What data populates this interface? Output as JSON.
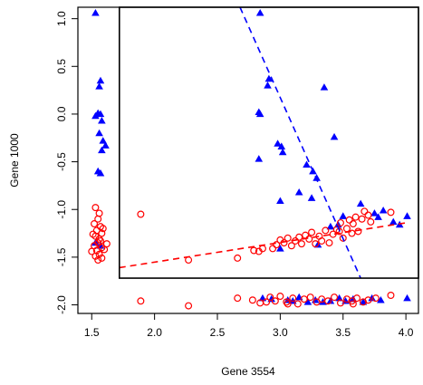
{
  "chart_data": {
    "type": "scatter",
    "title": "",
    "xlabel": "Gene 3554",
    "ylabel": "Gene 1000",
    "xlim": [
      1.39,
      4.1
    ],
    "ylim": [
      -2.09,
      1.12
    ],
    "xticks": [
      "1.5",
      "2.0",
      "2.5",
      "3.0",
      "3.5",
      "4.0"
    ],
    "yticks": [
      "-2.0",
      "-1.5",
      "-1.0",
      "-0.5",
      "0.0",
      "0.5",
      "1.0"
    ],
    "grid": false,
    "legend": "none",
    "region_box": {
      "x": [
        1.72,
        4.1
      ],
      "y": [
        -1.72,
        1.12
      ]
    },
    "series": [
      {
        "marker": "triangle",
        "color": "#0000ff",
        "points": [
          [
            1.53,
            1.06
          ],
          [
            1.57,
            0.35
          ],
          [
            1.56,
            0.29
          ],
          [
            1.55,
            0.01
          ],
          [
            1.57,
            0.0
          ],
          [
            1.53,
            -0.02
          ],
          [
            1.58,
            -0.07
          ],
          [
            1.56,
            -0.2
          ],
          [
            1.59,
            -0.28
          ],
          [
            1.61,
            -0.33
          ],
          [
            1.58,
            -0.38
          ],
          [
            1.55,
            -0.6
          ],
          [
            1.57,
            -0.62
          ],
          [
            1.53,
            -1.35
          ],
          [
            1.57,
            -1.38
          ],
          [
            2.84,
            1.06
          ],
          [
            2.91,
            0.37
          ],
          [
            2.9,
            0.3
          ],
          [
            2.83,
            0.02
          ],
          [
            2.84,
            0.0
          ],
          [
            2.98,
            -0.31
          ],
          [
            3.01,
            -0.34
          ],
          [
            3.02,
            -0.4
          ],
          [
            2.83,
            -0.47
          ],
          [
            3.35,
            0.28
          ],
          [
            3.43,
            -0.24
          ],
          [
            3.21,
            -0.53
          ],
          [
            3.26,
            -0.6
          ],
          [
            3.29,
            -0.67
          ],
          [
            3.15,
            -0.82
          ],
          [
            3.0,
            -0.91
          ],
          [
            3.25,
            -0.88
          ],
          [
            3.4,
            -1.18
          ],
          [
            3.5,
            -1.07
          ],
          [
            3.64,
            -0.94
          ],
          [
            3.75,
            -1.04
          ],
          [
            3.82,
            -1.01
          ],
          [
            3.78,
            -1.08
          ],
          [
            3.9,
            -1.13
          ],
          [
            4.01,
            -1.07
          ],
          [
            3.95,
            -1.16
          ],
          [
            3.46,
            -1.16
          ],
          [
            3.3,
            -1.37
          ],
          [
            3.0,
            -1.41
          ],
          [
            2.86,
            -1.93
          ],
          [
            2.93,
            -1.94
          ],
          [
            3.06,
            -1.95
          ],
          [
            3.15,
            -1.92
          ],
          [
            3.28,
            -1.95
          ],
          [
            3.34,
            -1.97
          ],
          [
            3.47,
            -1.93
          ],
          [
            3.52,
            -1.96
          ],
          [
            3.58,
            -1.94
          ],
          [
            3.66,
            -1.97
          ],
          [
            3.73,
            -1.93
          ],
          [
            3.8,
            -1.95
          ],
          [
            4.01,
            -1.93
          ],
          [
            3.22,
            -1.97
          ],
          [
            3.4,
            -1.96
          ],
          [
            3.1,
            -1.96
          ]
        ]
      },
      {
        "marker": "circle",
        "color": "#ff0000",
        "points": [
          [
            1.53,
            -0.98
          ],
          [
            1.56,
            -1.04
          ],
          [
            1.55,
            -1.1
          ],
          [
            1.52,
            -1.15
          ],
          [
            1.57,
            -1.18
          ],
          [
            1.54,
            -1.22
          ],
          [
            1.58,
            -1.25
          ],
          [
            1.53,
            -1.28
          ],
          [
            1.56,
            -1.31
          ],
          [
            1.55,
            -1.35
          ],
          [
            1.52,
            -1.38
          ],
          [
            1.58,
            -1.4
          ],
          [
            1.54,
            -1.43
          ],
          [
            1.5,
            -1.44
          ],
          [
            1.6,
            -1.42
          ],
          [
            1.56,
            -1.47
          ],
          [
            1.53,
            -1.49
          ],
          [
            1.58,
            -1.51
          ],
          [
            1.55,
            -1.53
          ],
          [
            1.62,
            -1.36
          ],
          [
            1.59,
            -1.2
          ],
          [
            1.51,
            -1.26
          ],
          [
            1.57,
            -1.33
          ],
          [
            1.89,
            -1.05
          ],
          [
            1.89,
            -1.96
          ],
          [
            2.27,
            -1.53
          ],
          [
            2.27,
            -2.01
          ],
          [
            2.66,
            -1.51
          ],
          [
            2.66,
            -1.93
          ],
          [
            2.79,
            -1.43
          ],
          [
            2.83,
            -1.44
          ],
          [
            2.86,
            -1.41
          ],
          [
            2.78,
            -1.95
          ],
          [
            2.84,
            -1.98
          ],
          [
            2.89,
            -1.97
          ],
          [
            2.94,
            -1.41
          ],
          [
            2.97,
            -1.37
          ],
          [
            3.0,
            -1.32
          ],
          [
            3.03,
            -1.35
          ],
          [
            3.06,
            -1.3
          ],
          [
            3.09,
            -1.38
          ],
          [
            3.12,
            -1.33
          ],
          [
            3.15,
            -1.29
          ],
          [
            3.17,
            -1.36
          ],
          [
            3.2,
            -1.27
          ],
          [
            3.23,
            -1.31
          ],
          [
            3.25,
            -1.24
          ],
          [
            3.28,
            -1.36
          ],
          [
            3.31,
            -1.28
          ],
          [
            3.33,
            -1.33
          ],
          [
            3.36,
            -1.22
          ],
          [
            3.39,
            -1.35
          ],
          [
            3.42,
            -1.26
          ],
          [
            3.45,
            -1.21
          ],
          [
            3.48,
            -1.14
          ],
          [
            3.5,
            -1.3
          ],
          [
            3.53,
            -1.2
          ],
          [
            3.55,
            -1.11
          ],
          [
            3.58,
            -1.15
          ],
          [
            3.6,
            -1.08
          ],
          [
            3.62,
            -1.23
          ],
          [
            3.65,
            -1.1
          ],
          [
            3.67,
            -1.02
          ],
          [
            3.7,
            -1.06
          ],
          [
            3.72,
            -1.13
          ],
          [
            3.57,
            -1.25
          ],
          [
            3.47,
            -1.23
          ],
          [
            3.88,
            -1.03
          ],
          [
            2.92,
            -1.92
          ],
          [
            2.96,
            -1.96
          ],
          [
            3.0,
            -1.91
          ],
          [
            3.05,
            -1.97
          ],
          [
            3.1,
            -1.93
          ],
          [
            3.14,
            -1.99
          ],
          [
            3.19,
            -1.94
          ],
          [
            3.24,
            -1.92
          ],
          [
            3.29,
            -1.97
          ],
          [
            3.33,
            -1.94
          ],
          [
            3.38,
            -1.96
          ],
          [
            3.43,
            -1.92
          ],
          [
            3.48,
            -1.98
          ],
          [
            3.53,
            -1.94
          ],
          [
            3.57,
            -1.96
          ],
          [
            3.61,
            -1.93
          ],
          [
            3.66,
            -1.97
          ],
          [
            3.7,
            -1.95
          ],
          [
            3.76,
            -1.93
          ],
          [
            3.88,
            -1.9
          ],
          [
            3.58,
            -1.99
          ],
          [
            3.06,
            -1.99
          ]
        ]
      }
    ],
    "lines": [
      {
        "color": "#0000ff",
        "dash": true,
        "from": [
          2.68,
          1.12
        ],
        "to": [
          3.64,
          -1.72
        ]
      },
      {
        "color": "#ff0000",
        "dash": true,
        "from": [
          1.72,
          -1.61
        ],
        "to": [
          4.0,
          -1.14
        ]
      }
    ]
  }
}
